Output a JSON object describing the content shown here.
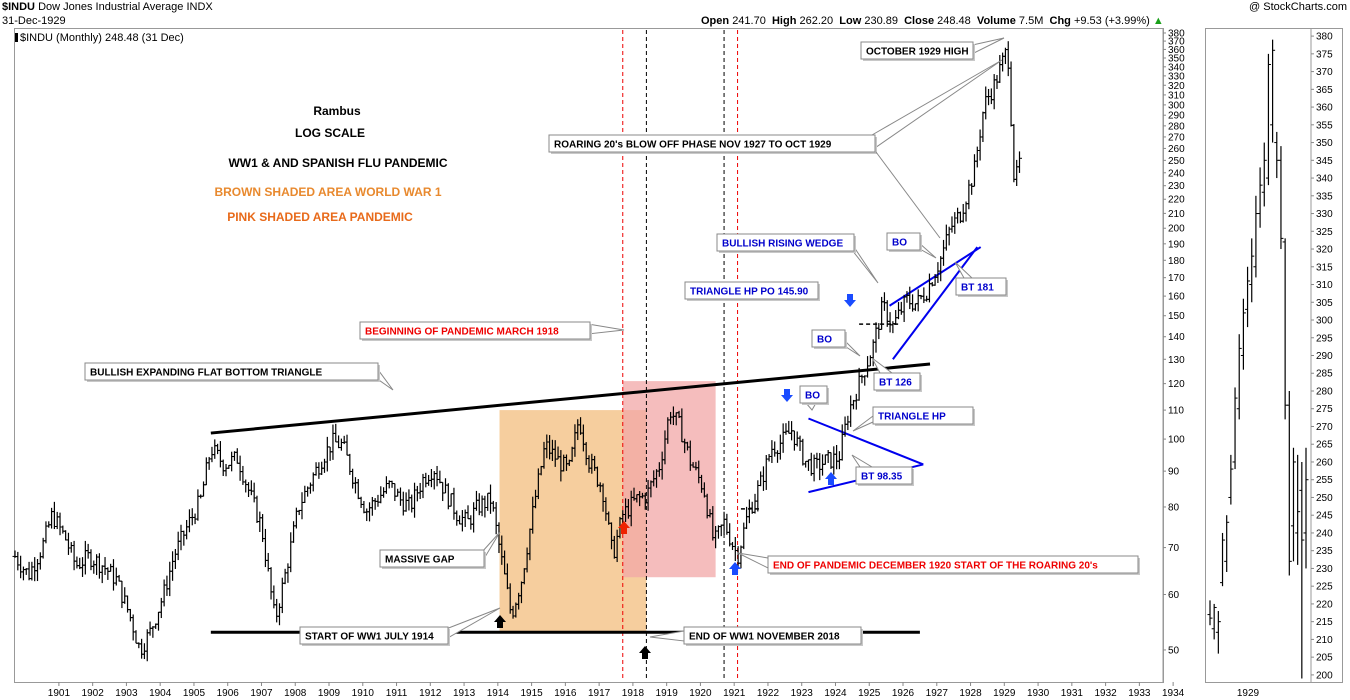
{
  "header": {
    "symbol": "$INDU",
    "name": "Dow Jones Industrial Average",
    "exchange": "INDX",
    "date": "31-Dec-1929",
    "brand": "@ StockCharts.com",
    "ohlc": {
      "open_label": "Open",
      "open": "241.70",
      "high_label": "High",
      "high": "262.20",
      "low_label": "Low",
      "low": "230.89",
      "close_label": "Close",
      "close": "248.48",
      "volume_label": "Volume",
      "volume": "7.5M",
      "chg_label": "Chg",
      "chg": "+9.53 (+3.99%)"
    },
    "legend": "$INDU (Monthly) 248.48 (31 Dec)"
  },
  "colors": {
    "ww1_shade": "#f5c58d",
    "pandemic_shade": "#f2a7a7",
    "trendline_blue": "#0000ee",
    "callout_red": "#ee0000",
    "callout_blue": "#0000cc",
    "callout_orange": "#e8892e",
    "callout_pink": "#e86a1a",
    "price_bar": "#000000"
  },
  "chart_data": [
    {
      "type": "ohlc-bar",
      "title": "$INDU (Monthly) 248.48 (31 Dec)",
      "scale": "log",
      "y_ticks": [
        50,
        60,
        70,
        80,
        90,
        100,
        110,
        120,
        130,
        140,
        150,
        160,
        170,
        180,
        190,
        200,
        210,
        220,
        230,
        240,
        250,
        260,
        270,
        280,
        290,
        300,
        310,
        320,
        330,
        340,
        350,
        360,
        370,
        380
      ],
      "ylim": [
        45,
        385
      ],
      "x_ticks": [
        "1901",
        "1902",
        "1903",
        "1904",
        "1905",
        "1906",
        "1907",
        "1908",
        "1909",
        "1910",
        "1911",
        "1912",
        "1913",
        "1914",
        "1915",
        "1916",
        "1917",
        "1918",
        "1919",
        "1920",
        "1921",
        "1922",
        "1923",
        "1924",
        "1925",
        "1926",
        "1927",
        "1928",
        "1929",
        "1930",
        "1931",
        "1932",
        "1933",
        "1934"
      ],
      "xlim": [
        1900.2,
        1934.2
      ],
      "series_close_path": [
        [
          1900.2,
          68
        ],
        [
          1900.6,
          64
        ],
        [
          1901.0,
          70
        ],
        [
          1901.3,
          78
        ],
        [
          1901.7,
          72
        ],
        [
          1902.0,
          66
        ],
        [
          1902.4,
          68
        ],
        [
          1902.8,
          66
        ],
        [
          1903.2,
          63
        ],
        [
          1903.6,
          56
        ],
        [
          1903.9,
          50
        ],
        [
          1904.2,
          53
        ],
        [
          1904.6,
          60
        ],
        [
          1904.9,
          68
        ],
        [
          1905.3,
          75
        ],
        [
          1905.7,
          82
        ],
        [
          1906.0,
          97
        ],
        [
          1906.4,
          92
        ],
        [
          1906.8,
          94
        ],
        [
          1907.1,
          85
        ],
        [
          1907.5,
          75
        ],
        [
          1907.9,
          55
        ],
        [
          1908.2,
          64
        ],
        [
          1908.6,
          80
        ],
        [
          1908.9,
          86
        ],
        [
          1909.3,
          94
        ],
        [
          1909.6,
          99
        ],
        [
          1909.9,
          98
        ],
        [
          1910.3,
          86
        ],
        [
          1910.6,
          79
        ],
        [
          1910.9,
          82
        ],
        [
          1911.3,
          86
        ],
        [
          1911.6,
          82
        ],
        [
          1911.9,
          80
        ],
        [
          1912.3,
          88
        ],
        [
          1912.6,
          91
        ],
        [
          1912.9,
          85
        ],
        [
          1913.3,
          78
        ],
        [
          1913.6,
          76
        ],
        [
          1913.9,
          80
        ],
        [
          1914.3,
          82
        ],
        [
          1914.5,
          72
        ],
        [
          1914.9,
          56
        ],
        [
          1915.2,
          63
        ],
        [
          1915.6,
          82
        ],
        [
          1915.9,
          98
        ],
        [
          1916.3,
          93
        ],
        [
          1916.6,
          90
        ],
        [
          1916.9,
          107
        ],
        [
          1917.2,
          93
        ],
        [
          1917.6,
          85
        ],
        [
          1917.9,
          68
        ],
        [
          1918.2,
          78
        ],
        [
          1918.6,
          82
        ],
        [
          1918.9,
          83
        ],
        [
          1919.3,
          92
        ],
        [
          1919.6,
          110
        ],
        [
          1919.9,
          104
        ],
        [
          1920.2,
          93
        ],
        [
          1920.6,
          85
        ],
        [
          1920.9,
          71
        ],
        [
          1921.2,
          76
        ],
        [
          1921.6,
          68
        ],
        [
          1921.9,
          78
        ],
        [
          1922.3,
          87
        ],
        [
          1922.6,
          97
        ],
        [
          1922.9,
          99
        ],
        [
          1923.2,
          103
        ],
        [
          1923.6,
          93
        ],
        [
          1923.9,
          91
        ],
        [
          1924.2,
          93
        ],
        [
          1924.6,
          94
        ],
        [
          1924.9,
          110
        ],
        [
          1925.2,
          120
        ],
        [
          1925.6,
          135
        ],
        [
          1925.9,
          155
        ],
        [
          1926.2,
          145
        ],
        [
          1926.6,
          158
        ],
        [
          1926.9,
          156
        ],
        [
          1927.2,
          163
        ],
        [
          1927.6,
          180
        ],
        [
          1927.9,
          200
        ],
        [
          1928.2,
          210
        ],
        [
          1928.6,
          240
        ],
        [
          1928.9,
          300
        ],
        [
          1929.2,
          320
        ],
        [
          1929.6,
          362
        ],
        [
          1929.8,
          230
        ],
        [
          1929.95,
          248
        ]
      ],
      "annotations": [
        {
          "text": "Rambus"
        },
        {
          "text": "LOG SCALE"
        },
        {
          "text": "WW1 & AND SPANISH FLU PANDEMIC"
        },
        {
          "text": "BROWN SHADED AREA WORLD WAR 1"
        },
        {
          "text": "PINK SHADED AREA PANDEMIC"
        },
        {
          "text": "OCTOBER 1929 HIGH"
        },
        {
          "text": "ROARING 20's BLOW OFF PHASE NOV 1927 TO OCT 1929"
        },
        {
          "text": "BO"
        },
        {
          "text": "BULLISH RISING WEDGE"
        },
        {
          "text": "BT 181"
        },
        {
          "text": "TRIANGLE HP PO 145.90"
        },
        {
          "text": "BO"
        },
        {
          "text": "BEGINNING OF PANDEMIC MARCH 1918"
        },
        {
          "text": "BT 126"
        },
        {
          "text": "BULLISH EXPANDING FLAT BOTTOM TRIANGLE"
        },
        {
          "text": "BO"
        },
        {
          "text": "TRIANGLE HP"
        },
        {
          "text": "BT 98.35"
        },
        {
          "text": "MASSIVE GAP"
        },
        {
          "text": "END OF PANDEMIC DECEMBER 1920 START OF THE ROARING 20's"
        },
        {
          "text": "START OF WW1 JULY 1914"
        },
        {
          "text": "END OF WW1 NOVEMBER 2018"
        }
      ]
    },
    {
      "type": "ohlc-bar",
      "title": "",
      "scale": "linear",
      "y_ticks": [
        200,
        205,
        210,
        215,
        220,
        225,
        230,
        235,
        240,
        245,
        250,
        255,
        260,
        265,
        270,
        275,
        280,
        285,
        290,
        295,
        300,
        305,
        310,
        315,
        320,
        325,
        330,
        335,
        340,
        345,
        350,
        355,
        360,
        365,
        370,
        375,
        380
      ],
      "ylim": [
        198,
        382
      ],
      "x_ticks": [
        "1929"
      ],
      "daily_bars": [
        [
          217,
          221,
          214,
          216
        ],
        [
          213,
          220,
          210,
          219
        ],
        [
          212,
          218,
          206,
          215
        ],
        [
          226,
          240,
          225,
          238
        ],
        [
          232,
          245,
          229,
          243
        ],
        [
          250,
          262,
          248,
          258
        ],
        [
          260,
          281,
          258,
          278
        ],
        [
          275,
          296,
          272,
          292
        ],
        [
          290,
          306,
          286,
          302
        ],
        [
          303,
          315,
          298,
          311
        ],
        [
          310,
          323,
          305,
          318
        ],
        [
          315,
          335,
          312,
          330
        ],
        [
          330,
          343,
          326,
          338
        ],
        [
          336,
          350,
          332,
          345
        ],
        [
          340,
          375,
          338,
          372
        ],
        [
          355,
          379,
          350,
          376
        ],
        [
          350,
          353,
          340,
          345
        ],
        [
          345,
          349,
          320,
          323
        ],
        [
          322,
          323,
          272,
          276
        ],
        [
          276,
          280,
          228,
          232
        ],
        [
          242,
          264,
          232,
          260
        ],
        [
          240,
          262,
          231,
          246
        ],
        [
          252,
          260,
          199,
          238
        ],
        [
          240,
          264,
          230,
          255
        ]
      ]
    }
  ]
}
